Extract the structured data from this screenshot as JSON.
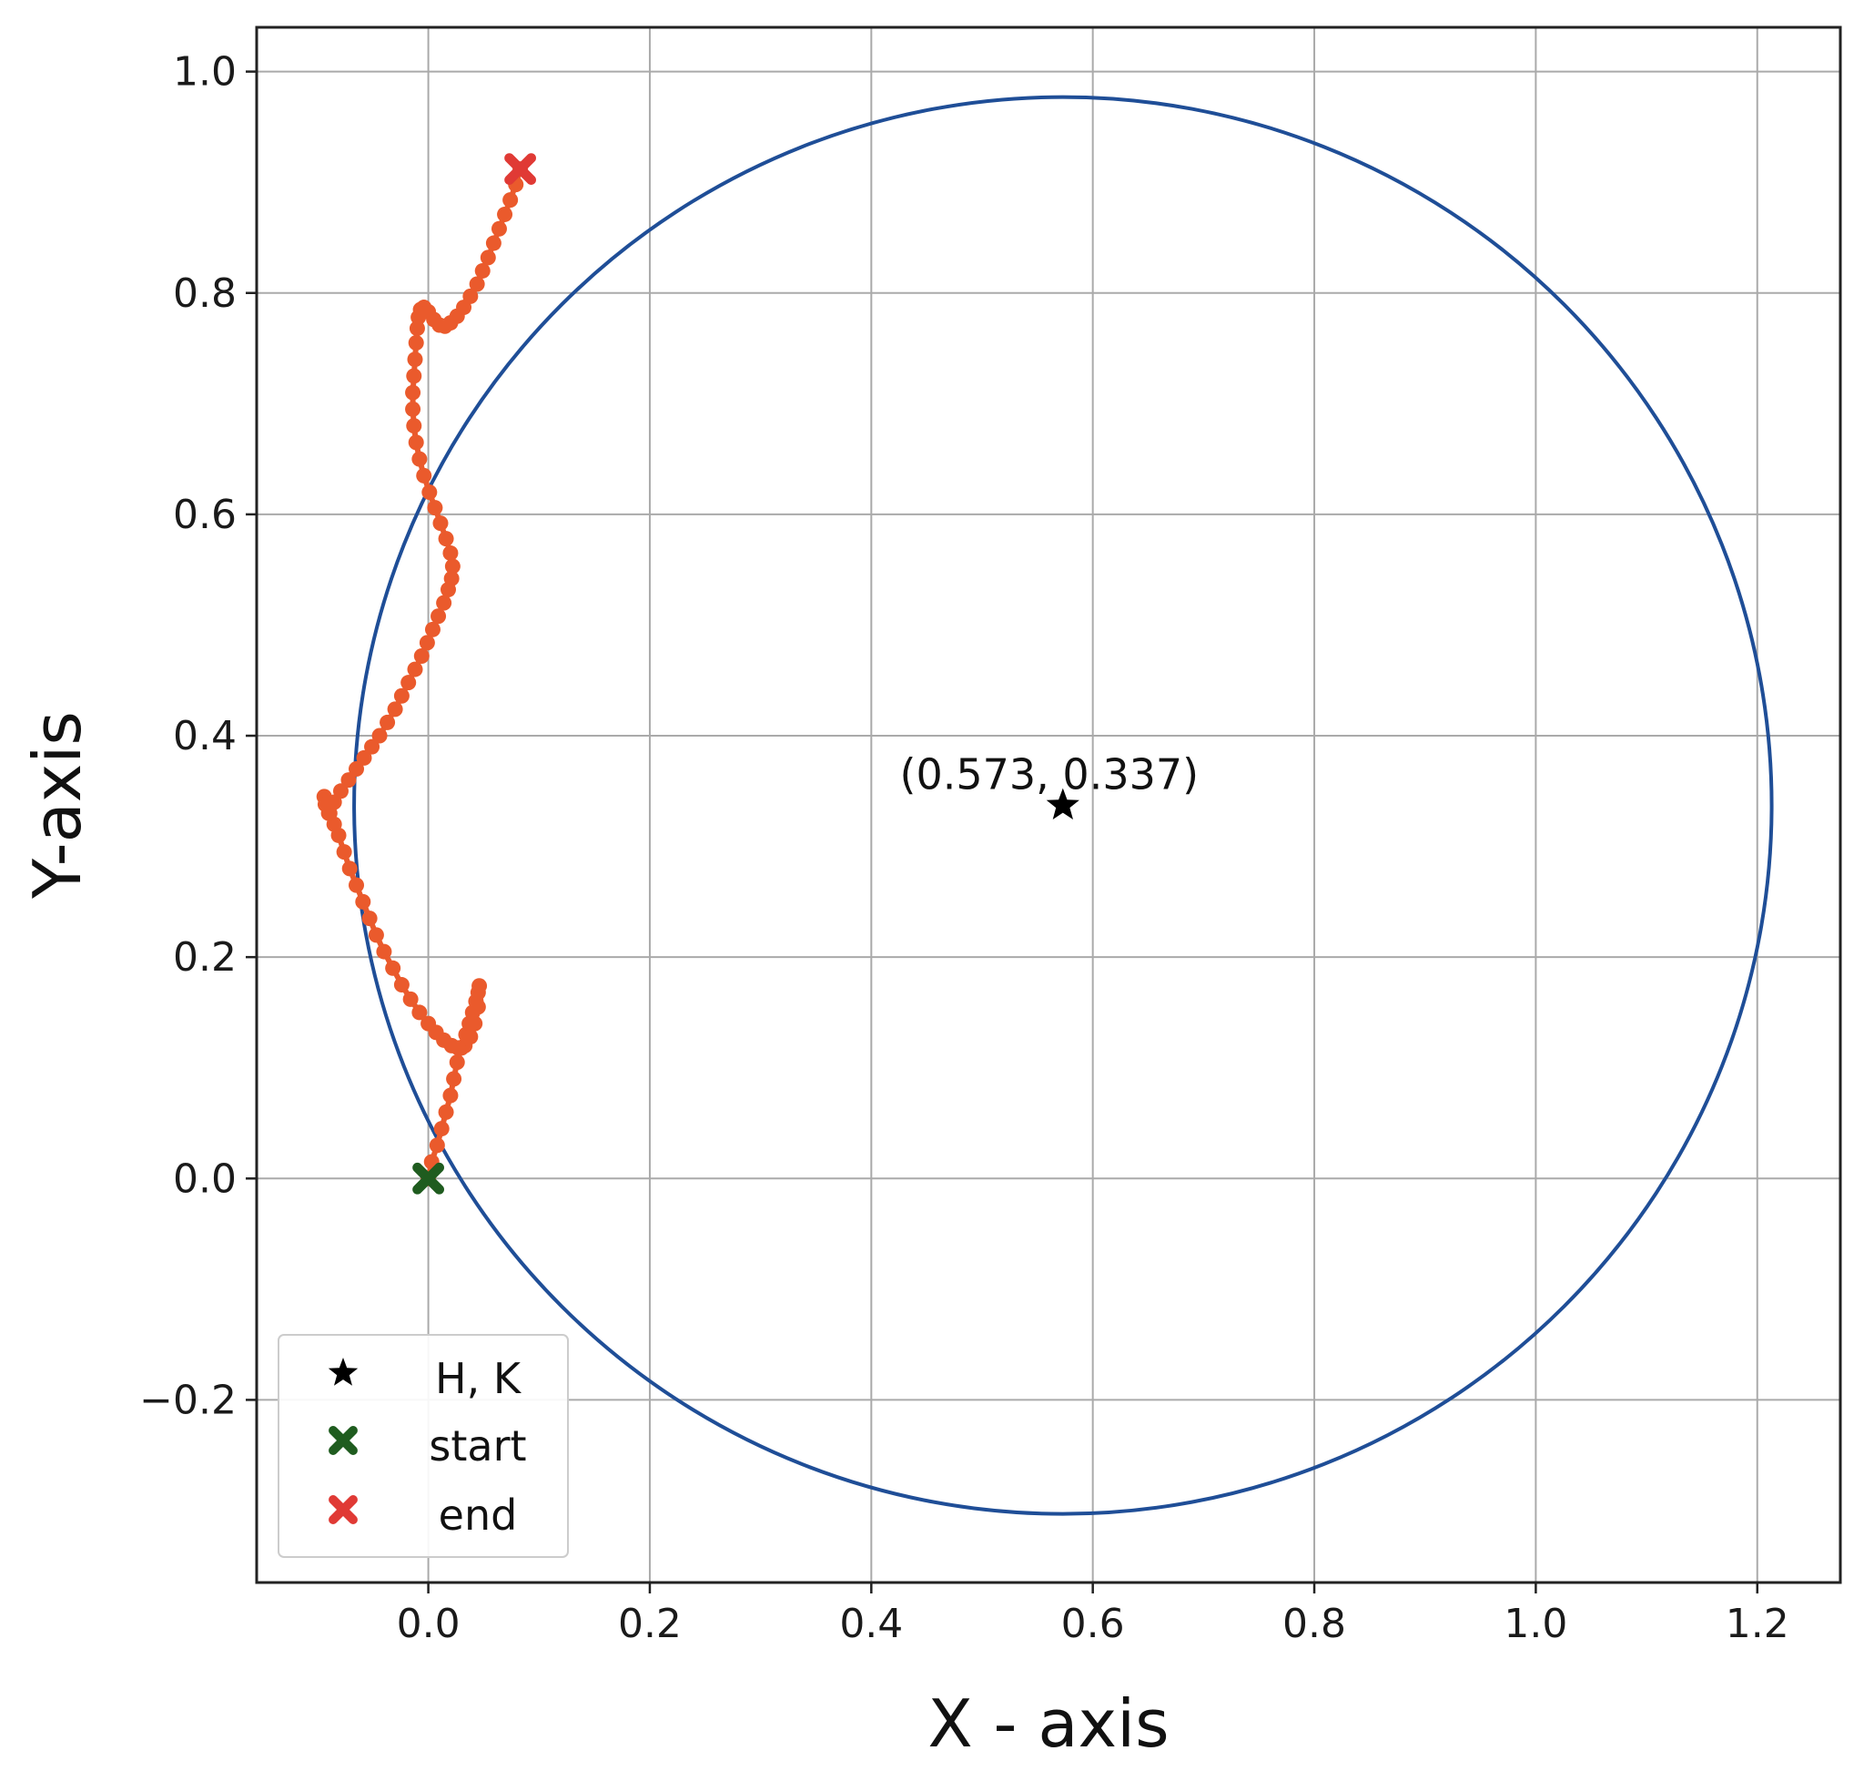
{
  "chart_data": {
    "type": "scatter",
    "title": "",
    "xlabel": "X - axis",
    "ylabel": "Y-axis",
    "xlim": [
      -0.155,
      1.275
    ],
    "ylim": [
      -0.365,
      1.04
    ],
    "xticks": [
      0.0,
      0.2,
      0.4,
      0.6,
      0.8,
      1.0,
      1.2
    ],
    "yticks": [
      -0.2,
      0.0,
      0.2,
      0.4,
      0.6,
      0.8,
      1.0
    ],
    "xtick_labels": [
      "0.0",
      "0.2",
      "0.4",
      "0.6",
      "0.8",
      "1.0",
      "1.2"
    ],
    "ytick_labels": [
      "−0.2",
      "0.0",
      "0.2",
      "0.4",
      "0.6",
      "0.8",
      "1.0"
    ],
    "grid": true,
    "legend_position": "lower-left",
    "colors": {
      "circle": "#1f4e97",
      "path": "#ea5a2c",
      "center": "#000000",
      "start": "#1f5c1f",
      "end": "#e03a35",
      "grid": "#aaaaaa"
    },
    "circle": {
      "center": [
        0.573,
        0.337
      ],
      "radius": 0.64
    },
    "center": {
      "name": "H, K",
      "x": 0.573,
      "y": 0.337,
      "annotation": "(0.573, 0.337)"
    },
    "start": {
      "name": "start",
      "x": 0.0,
      "y": 0.0
    },
    "end": {
      "name": "end",
      "x": 0.083,
      "y": 0.912
    },
    "path": {
      "x": [
        0.0,
        0.003,
        0.008,
        0.012,
        0.016,
        0.02,
        0.023,
        0.026,
        0.03,
        0.034,
        0.037,
        0.04,
        0.043,
        0.045,
        0.046,
        0.045,
        0.042,
        0.038,
        0.033,
        0.027,
        0.021,
        0.014,
        0.007,
        0.0,
        -0.008,
        -0.016,
        -0.024,
        -0.032,
        -0.04,
        -0.047,
        -0.053,
        -0.059,
        -0.065,
        -0.071,
        -0.076,
        -0.081,
        -0.085,
        -0.089,
        -0.092,
        -0.094,
        -0.093,
        -0.09,
        -0.085,
        -0.079,
        -0.072,
        -0.065,
        -0.058,
        -0.051,
        -0.044,
        -0.037,
        -0.03,
        -0.024,
        -0.018,
        -0.012,
        -0.006,
        -0.001,
        0.004,
        0.009,
        0.014,
        0.018,
        0.021,
        0.022,
        0.02,
        0.016,
        0.011,
        0.006,
        0.001,
        -0.004,
        -0.008,
        -0.011,
        -0.013,
        -0.014,
        -0.014,
        -0.013,
        -0.012,
        -0.011,
        -0.01,
        -0.009,
        -0.007,
        -0.004,
        0.0,
        0.005,
        0.01,
        0.015,
        0.02,
        0.026,
        0.032,
        0.038,
        0.044,
        0.049,
        0.054,
        0.059,
        0.064,
        0.069,
        0.074,
        0.079,
        0.083
      ],
      "y": [
        0.0,
        0.015,
        0.03,
        0.045,
        0.06,
        0.075,
        0.09,
        0.105,
        0.118,
        0.13,
        0.14,
        0.15,
        0.16,
        0.168,
        0.174,
        0.155,
        0.14,
        0.128,
        0.12,
        0.118,
        0.12,
        0.125,
        0.132,
        0.14,
        0.15,
        0.162,
        0.175,
        0.19,
        0.205,
        0.22,
        0.235,
        0.25,
        0.265,
        0.28,
        0.295,
        0.31,
        0.32,
        0.33,
        0.338,
        0.345,
        0.338,
        0.33,
        0.34,
        0.35,
        0.36,
        0.37,
        0.38,
        0.39,
        0.4,
        0.412,
        0.424,
        0.436,
        0.448,
        0.46,
        0.472,
        0.484,
        0.496,
        0.508,
        0.52,
        0.532,
        0.542,
        0.553,
        0.565,
        0.578,
        0.592,
        0.606,
        0.62,
        0.635,
        0.65,
        0.665,
        0.68,
        0.695,
        0.71,
        0.725,
        0.74,
        0.755,
        0.768,
        0.778,
        0.785,
        0.787,
        0.783,
        0.776,
        0.771,
        0.77,
        0.773,
        0.779,
        0.787,
        0.797,
        0.808,
        0.82,
        0.832,
        0.845,
        0.858,
        0.871,
        0.884,
        0.898,
        0.912
      ]
    }
  }
}
